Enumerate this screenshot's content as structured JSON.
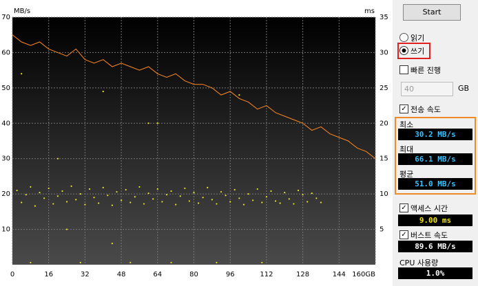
{
  "chart_data": {
    "type": "line",
    "y_label": "MB/s",
    "y2_label": "ms",
    "xlim": [
      0,
      160
    ],
    "xticks": [
      0,
      16,
      32,
      48,
      64,
      80,
      96,
      112,
      128,
      144,
      {
        "value": 160,
        "label": "160GB"
      }
    ],
    "ylim": [
      0,
      70
    ],
    "yticks": [
      10,
      20,
      30,
      40,
      50,
      60,
      70
    ],
    "y2lim": [
      0,
      35
    ],
    "y2ticks": [
      5,
      10,
      15,
      20,
      25,
      30,
      35
    ],
    "grid": true,
    "series": [
      {
        "type": "line",
        "color": "#ff8a1c",
        "x": [
          0,
          4,
          8,
          12,
          16,
          20,
          24,
          28,
          32,
          36,
          40,
          44,
          48,
          52,
          56,
          60,
          64,
          68,
          72,
          76,
          80,
          84,
          88,
          92,
          96,
          100,
          104,
          108,
          112,
          116,
          120,
          124,
          128,
          132,
          136,
          140,
          144,
          148,
          152,
          156,
          160
        ],
        "values": [
          65,
          63,
          62,
          63,
          61,
          60,
          59,
          61,
          58,
          57,
          58,
          56,
          57,
          56,
          55,
          56,
          54,
          53,
          54,
          52,
          51,
          51,
          50,
          48,
          49,
          47,
          46,
          44,
          45,
          43,
          42,
          41,
          40,
          38,
          39,
          37,
          36,
          35,
          33,
          32,
          30
        ]
      },
      {
        "type": "scatter",
        "color": "#e8e820",
        "axis": "y2",
        "x": [
          2,
          4,
          6,
          8,
          10,
          12,
          14,
          16,
          18,
          20,
          22,
          24,
          26,
          28,
          30,
          32,
          34,
          36,
          38,
          40,
          42,
          44,
          46,
          48,
          50,
          52,
          54,
          56,
          58,
          60,
          62,
          64,
          66,
          68,
          70,
          72,
          74,
          76,
          78,
          80,
          82,
          84,
          86,
          88,
          90,
          92,
          94,
          96,
          98,
          100,
          102,
          104,
          106,
          108,
          110,
          112,
          114,
          116,
          118,
          120,
          122,
          124,
          126,
          128,
          130,
          132,
          134,
          136,
          8,
          30,
          52,
          70,
          90,
          110,
          4,
          40,
          60,
          100,
          20,
          64,
          24,
          44
        ],
        "values": [
          10.5,
          8.8,
          9.9,
          11.0,
          8.3,
          10.2,
          9.4,
          10.8,
          8.6,
          9.7,
          10.4,
          8.9,
          11.1,
          9.2,
          10.0,
          8.5,
          10.7,
          9.5,
          8.7,
          10.9,
          9.8,
          8.4,
          10.3,
          9.1,
          10.6,
          8.8,
          9.6,
          11.0,
          8.6,
          10.1,
          9.3,
          10.7,
          8.9,
          9.9,
          10.4,
          8.5,
          9.7,
          10.8,
          9.0,
          10.2,
          8.7,
          9.5,
          10.9,
          9.2,
          8.6,
          10.3,
          9.8,
          8.9,
          10.6,
          9.4,
          8.5,
          10.0,
          9.1,
          10.7,
          8.8,
          9.6,
          10.4,
          9.0,
          8.7,
          10.2,
          9.3,
          8.6,
          10.5,
          9.9,
          8.9,
          10.1,
          9.4,
          8.8,
          0.3,
          0.3,
          0.3,
          0.3,
          0.3,
          0.3,
          27.0,
          24.5,
          20.0,
          24.0,
          15.0,
          20.0,
          5.0,
          3.0
        ]
      }
    ]
  },
  "panel": {
    "start": "Start",
    "read": "읽기",
    "write": "쓰기",
    "quick": "빠른 진행",
    "size": "40",
    "size_unit": "GB",
    "transfer": "전송 속도",
    "min_label": "최소",
    "min": "30.2 MB/s",
    "max_label": "최대",
    "max": "66.1 MB/s",
    "avg_label": "평균",
    "avg": "51.0 MB/s",
    "access": "액세스 시간",
    "access_value": "9.00 ms",
    "burst": "버스트 속도",
    "burst_value": "89.6 MB/s",
    "cpu": "CPU 사용량",
    "cpu_value": "1.0%"
  }
}
